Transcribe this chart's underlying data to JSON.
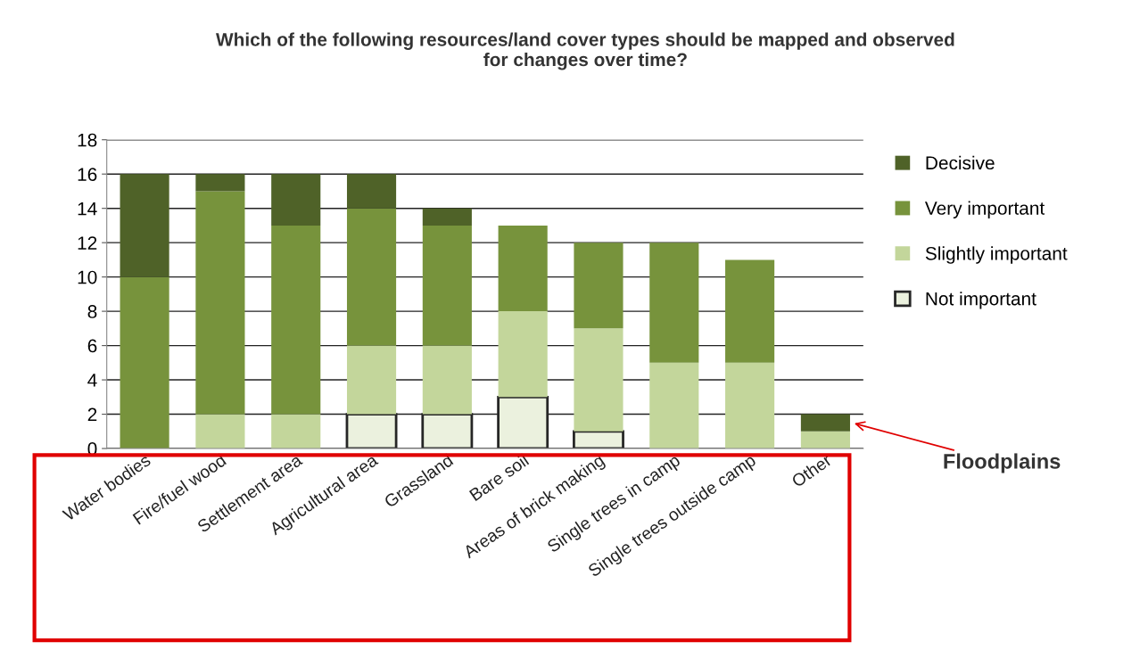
{
  "chart_data": {
    "type": "bar",
    "stacked": true,
    "title": "Which of the following resources/land cover types should be mapped and observed\nfor changes over time?",
    "categories": [
      "Water bodies",
      "Fire/fuel wood",
      "Settlement area",
      "Agricultural area",
      "Grassland",
      "Bare soil",
      "Areas of brick making",
      "Single trees in camp",
      "Single trees outside camp",
      "Other"
    ],
    "series": [
      {
        "name": "Not important",
        "color": "#ebf1de",
        "values": [
          0,
          0,
          0,
          2,
          2,
          3,
          1,
          0,
          0,
          0
        ]
      },
      {
        "name": "Slightly important",
        "color": "#c3d69b",
        "values": [
          0,
          2,
          2,
          4,
          4,
          5,
          6,
          5,
          5,
          1
        ]
      },
      {
        "name": "Very important",
        "color": "#77933c",
        "values": [
          10,
          13,
          11,
          8,
          7,
          5,
          5,
          7,
          6,
          0
        ]
      },
      {
        "name": "Decisive",
        "color": "#4f6228",
        "values": [
          6,
          1,
          3,
          2,
          1,
          0,
          0,
          0,
          0,
          1
        ]
      }
    ],
    "ylim": [
      0,
      18
    ],
    "yticks": [
      0,
      2,
      4,
      6,
      8,
      10,
      12,
      14,
      16,
      18
    ],
    "grid": "y",
    "legend": "right",
    "annotations": [
      "Floodplains"
    ]
  }
}
